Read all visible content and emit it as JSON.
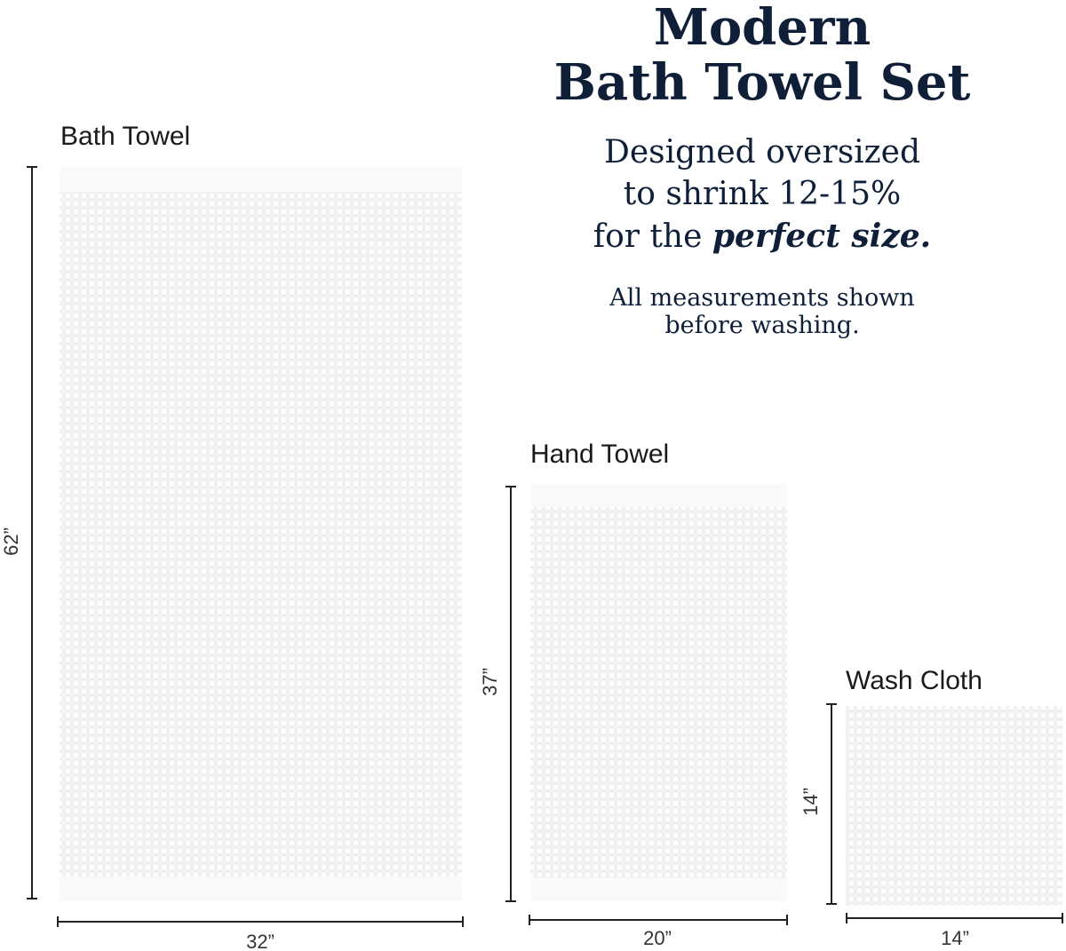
{
  "title": [
    "Modern",
    "Bath Towel Set"
  ],
  "tagline": {
    "lines": [
      "Designed oversized",
      "to shrink 12-15%"
    ],
    "last_line_start": "for the",
    "emphasis": "perfect size."
  },
  "note": [
    "All measurements shown",
    "before washing."
  ],
  "towels": [
    {
      "name": "Bath Towel",
      "height": "62”",
      "width": "32”"
    },
    {
      "name": "Hand Towel",
      "height": "37”",
      "width": "20”"
    },
    {
      "name": "Wash Cloth",
      "height": "14”",
      "width": "14”"
    }
  ]
}
